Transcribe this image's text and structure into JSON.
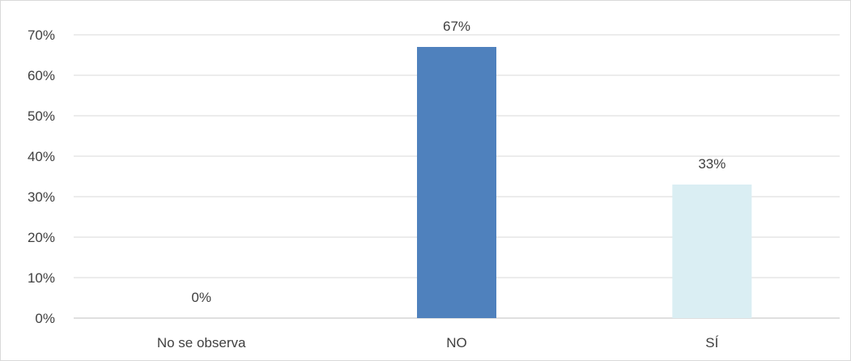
{
  "chart_data": {
    "type": "bar",
    "categories": [
      "No se observa",
      "NO",
      "SÍ"
    ],
    "values": [
      0,
      67,
      33
    ],
    "data_labels": [
      "0%",
      "67%",
      "33%"
    ],
    "colors": [
      "#4f81bd",
      "#4f81bd",
      "#daeef3"
    ],
    "ylim": [
      0,
      70
    ],
    "yticks": [
      0,
      10,
      20,
      30,
      40,
      50,
      60,
      70
    ],
    "ytick_labels": [
      "0%",
      "10%",
      "20%",
      "30%",
      "40%",
      "50%",
      "60%",
      "70%"
    ],
    "grid": true,
    "legend": "none",
    "title": "",
    "xlabel": "",
    "ylabel": ""
  }
}
